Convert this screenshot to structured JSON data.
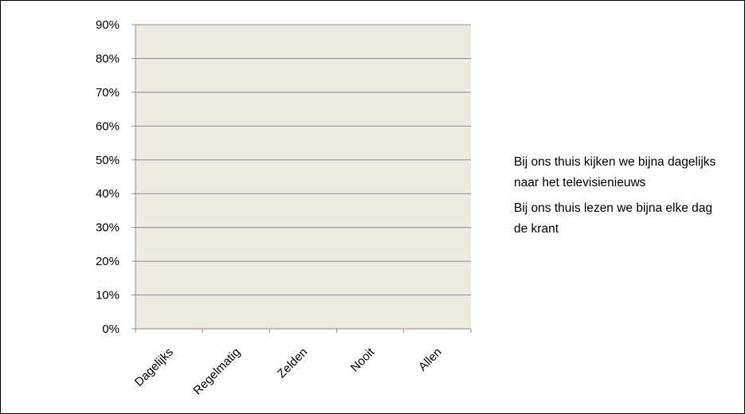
{
  "chart_data": {
    "type": "bar",
    "categories": [
      "Dagelijks",
      "Regelmatig",
      "Zelden",
      "Nooit",
      "Allen"
    ],
    "series": [
      {
        "name": "Bij ons thuis kijken we bijna dagelijks naar het televisienieuws",
        "values": [
          0,
          0,
          0,
          0,
          0
        ]
      },
      {
        "name": "Bij ons thuis lezen we bijna elke dag de krant",
        "values": [
          0,
          0,
          0,
          0,
          0
        ]
      }
    ],
    "yticks": [
      "0%",
      "10%",
      "20%",
      "30%",
      "40%",
      "50%",
      "60%",
      "70%",
      "80%",
      "90%"
    ],
    "ylim": [
      0,
      0.9
    ],
    "grid": true,
    "legend": "right",
    "colors": {
      "plot_background": "#EEEAE0",
      "gridline": "#8C8C8C",
      "axis": "#8C8C8C"
    }
  }
}
